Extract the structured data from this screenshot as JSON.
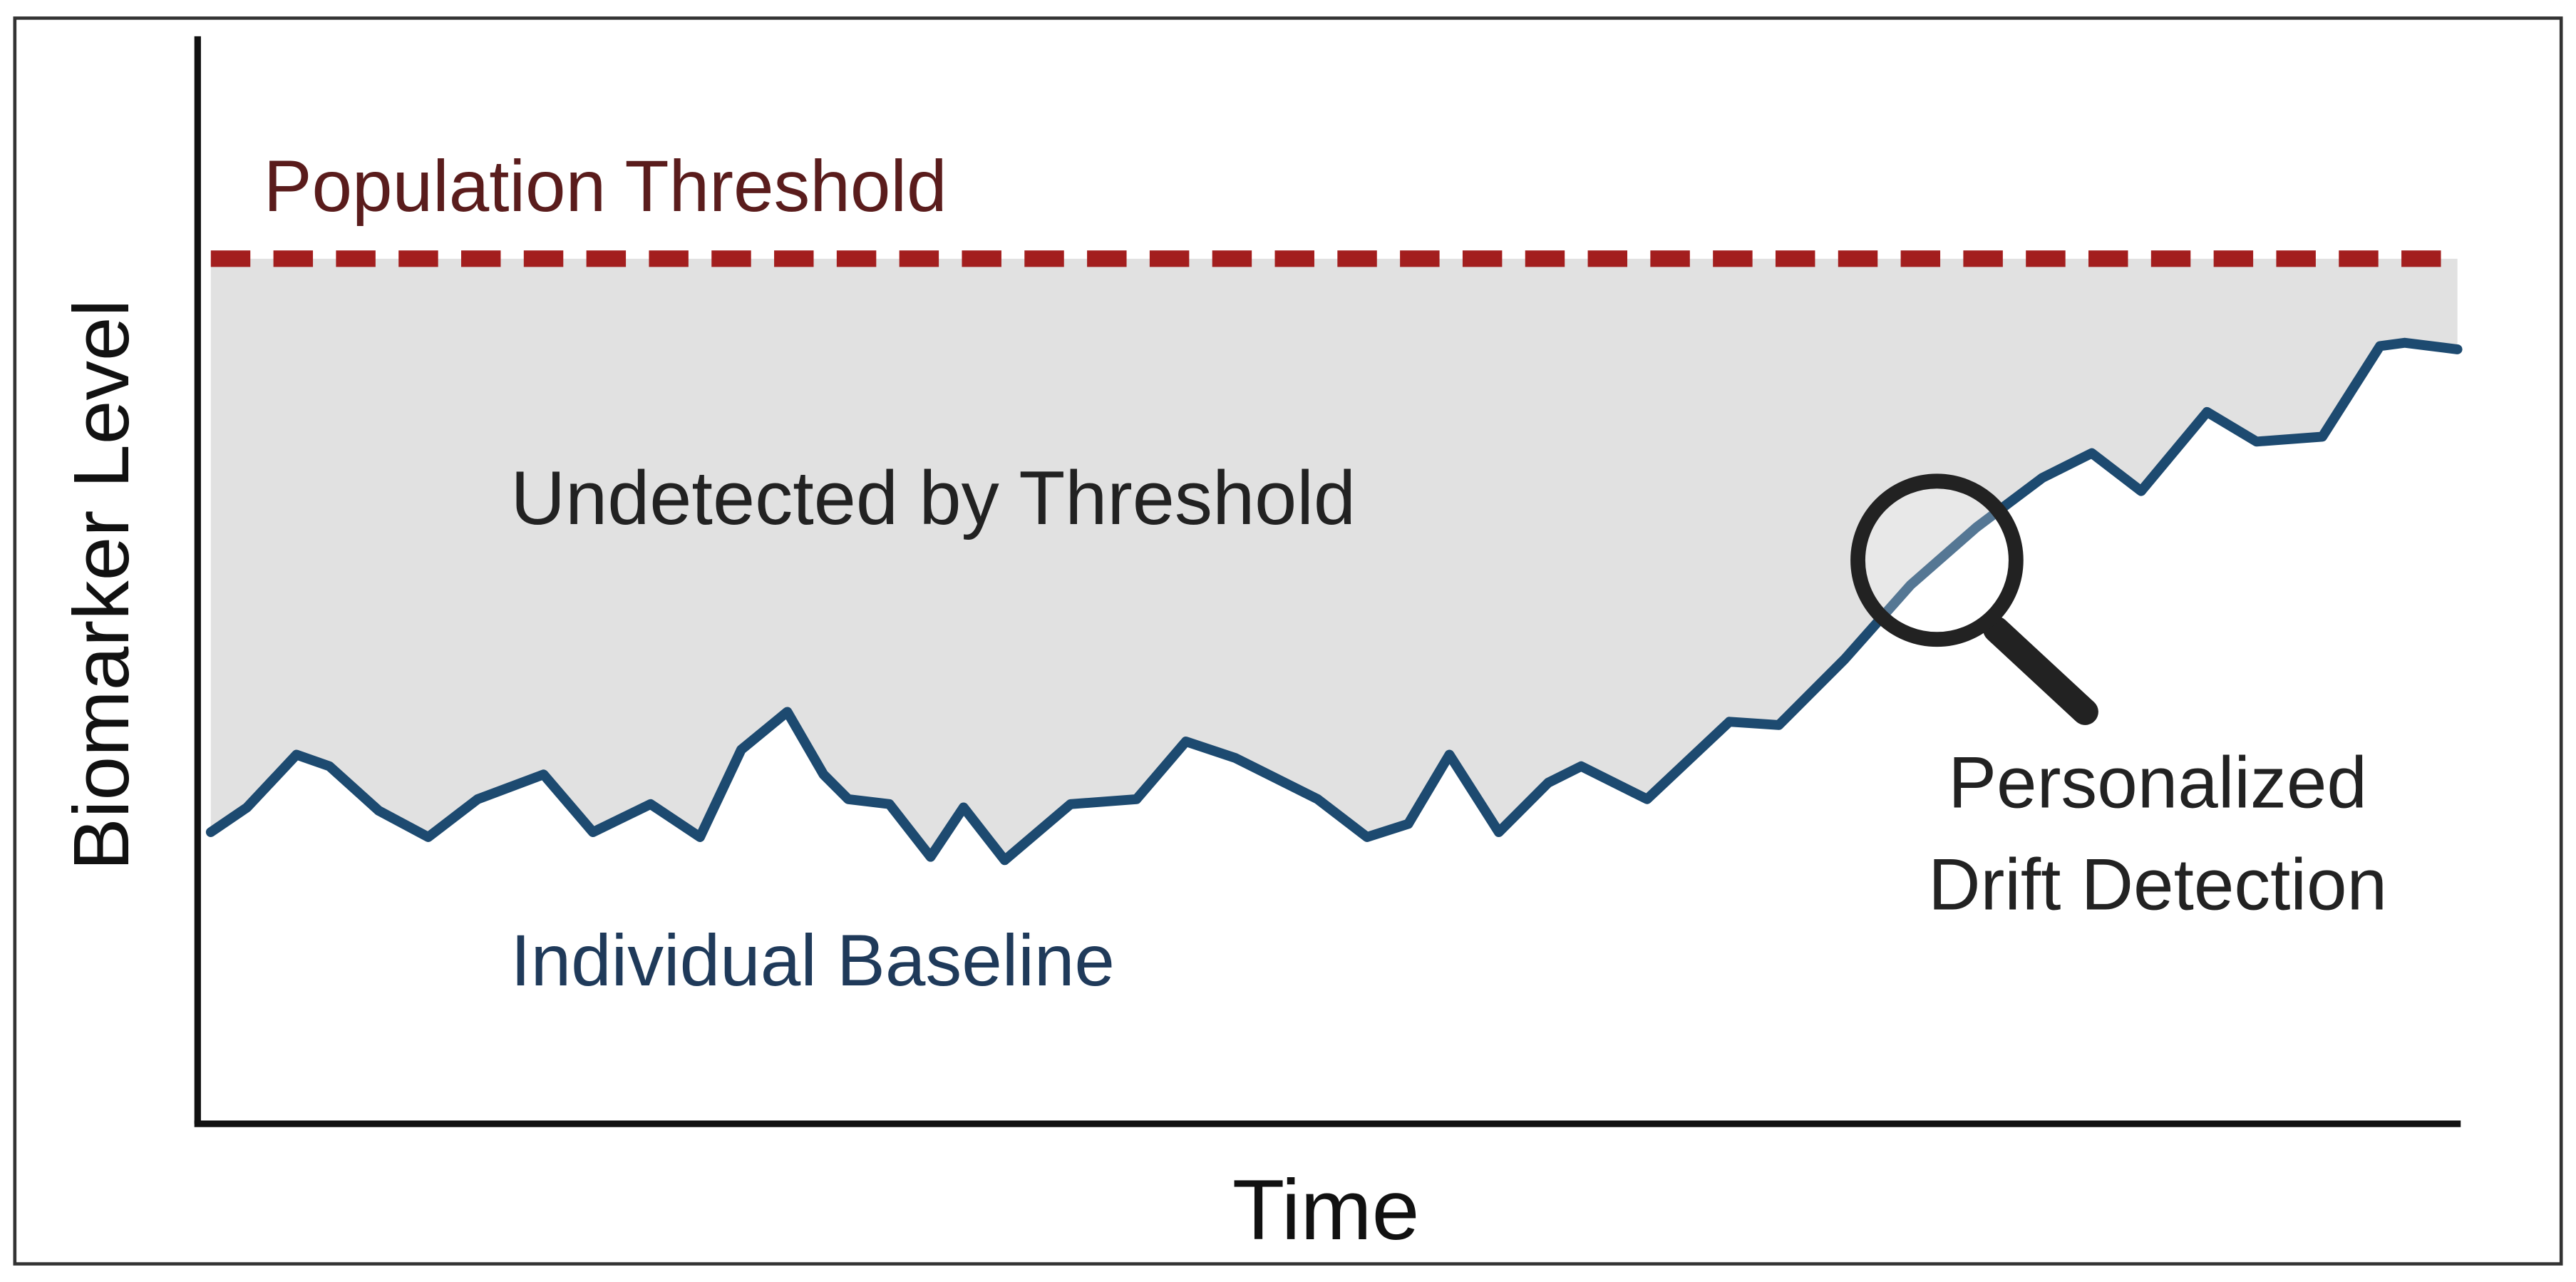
{
  "axes": {
    "y_label": "Biomarker Level",
    "x_label": "Time"
  },
  "annotations": {
    "threshold": "Population Threshold",
    "region": "Undetected by Threshold",
    "baseline": "Individual Baseline",
    "detection": [
      "Personalized",
      "Drift Detection"
    ]
  }
}
